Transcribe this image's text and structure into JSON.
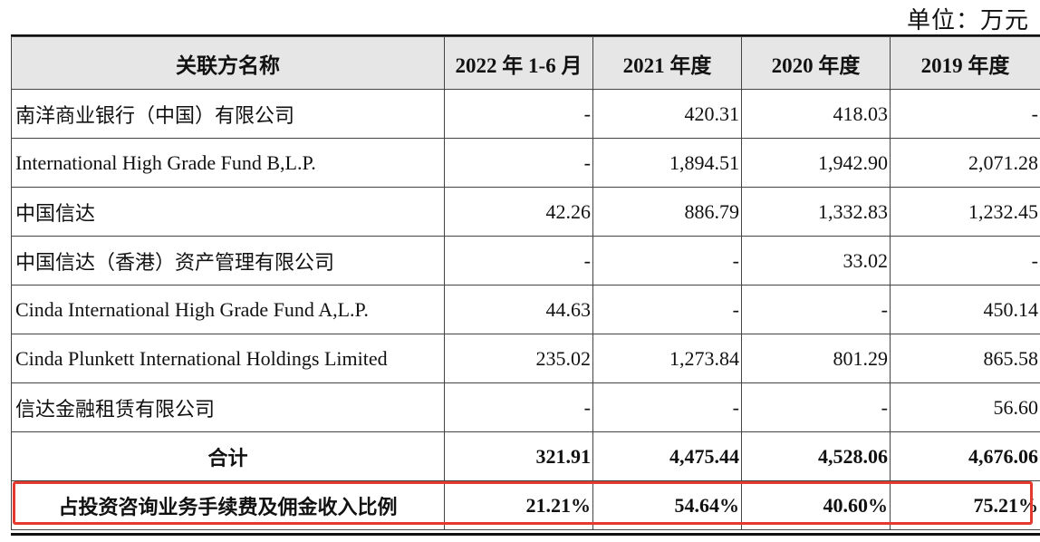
{
  "unit_label": "单位：万元",
  "header": {
    "name_col": "关联方名称",
    "cols": [
      "2022 年 1-6 月",
      "2021 年度",
      "2020 年度",
      "2019 年度"
    ]
  },
  "rows": [
    {
      "name": "南洋商业银行（中国）有限公司",
      "values": [
        "-",
        "420.31",
        "418.03",
        "-"
      ]
    },
    {
      "name": "International High Grade Fund B,L.P.",
      "values": [
        "-",
        "1,894.51",
        "1,942.90",
        "2,071.28"
      ]
    },
    {
      "name": "中国信达",
      "values": [
        "42.26",
        "886.79",
        "1,332.83",
        "1,232.45"
      ]
    },
    {
      "name": "中国信达（香港）资产管理有限公司",
      "values": [
        "-",
        "-",
        "33.02",
        "-"
      ]
    },
    {
      "name": "Cinda International High Grade Fund A,L.P.",
      "values": [
        "44.63",
        "-",
        "-",
        "450.14"
      ]
    },
    {
      "name": "Cinda Plunkett International Holdings Limited",
      "values": [
        "235.02",
        "1,273.84",
        "801.29",
        "865.58"
      ]
    },
    {
      "name": "信达金融租赁有限公司",
      "values": [
        "-",
        "-",
        "-",
        "56.60"
      ]
    }
  ],
  "total": {
    "name": "合计",
    "values": [
      "321.91",
      "4,475.44",
      "4,528.06",
      "4,676.06"
    ]
  },
  "ratio": {
    "name": "占投资咨询业务手续费及佣金收入比例",
    "values": [
      "21.21%",
      "54.64%",
      "40.60%",
      "75.21%"
    ]
  },
  "colors": {
    "highlight": "#e5392f",
    "header_bg": "#e6e6e6"
  }
}
